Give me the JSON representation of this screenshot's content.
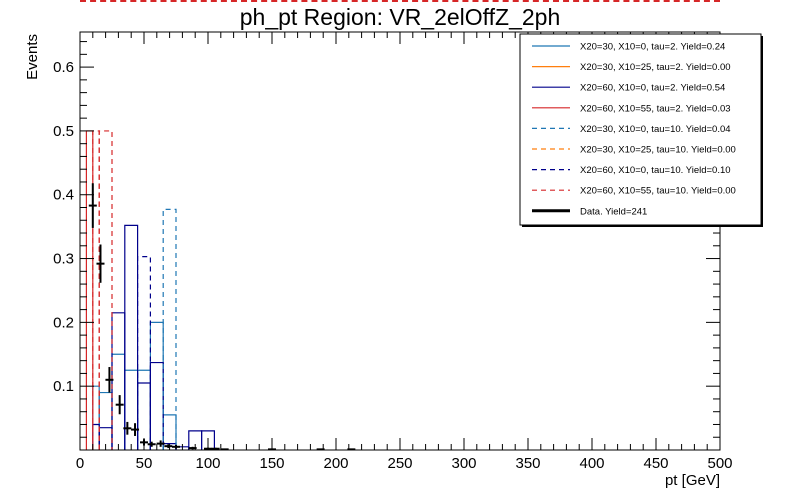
{
  "chart_data": {
    "type": "histogram",
    "title": "ph_pt Region: VR_2elOffZ_2ph",
    "xlabel": "pt [GeV]",
    "ylabel": "Events",
    "xlim": [
      0,
      500
    ],
    "ylim": [
      0,
      0.655
    ],
    "x_ticks": [
      0,
      50,
      100,
      150,
      200,
      250,
      300,
      350,
      400,
      450,
      500
    ],
    "y_ticks": [
      0.1,
      0.2,
      0.3,
      0.4,
      0.5,
      0.6
    ],
    "series": [
      {
        "name": "X20=30, X10=0, tau=2. Yield=0.24",
        "color": "#1f77b4",
        "style": "solid",
        "bins": [
          [
            10,
            15,
            0.1
          ],
          [
            15,
            25,
            0.09
          ],
          [
            25,
            35,
            0.15
          ],
          [
            35,
            45,
            0.125
          ],
          [
            45,
            55,
            0.125
          ],
          [
            55,
            65,
            0.2
          ],
          [
            65,
            75,
            0.055
          ]
        ]
      },
      {
        "name": "X20=30, X10=25, tau=2. Yield=0.00",
        "color": "#ff7f0e",
        "style": "solid",
        "bins": []
      },
      {
        "name": "X20=60, X10=0, tau=2. Yield=0.54",
        "color": "#00008b",
        "style": "solid",
        "bins": [
          [
            10,
            15,
            0.04
          ],
          [
            15,
            25,
            0.035
          ],
          [
            25,
            35,
            0.215
          ],
          [
            35,
            45,
            0.352
          ],
          [
            45,
            55,
            0.105
          ],
          [
            55,
            65,
            0.137
          ],
          [
            65,
            75,
            0.01
          ],
          [
            75,
            85,
            0.005
          ],
          [
            85,
            95,
            0.03
          ],
          [
            95,
            105,
            0.03
          ]
        ]
      },
      {
        "name": "X20=60, X10=55, tau=2. Yield=0.03",
        "color": "#d62728",
        "style": "solid",
        "bins": [
          [
            5,
            10,
            0.5
          ]
        ]
      },
      {
        "name": "X20=30, X10=0, tau=10. Yield=0.04",
        "color": "#1f77b4",
        "style": "dashed",
        "bins": [
          [
            65,
            75,
            0.377
          ]
        ]
      },
      {
        "name": "X20=30, X10=25, tau=10. Yield=0.00",
        "color": "#ff7f0e",
        "style": "dashed",
        "bins": []
      },
      {
        "name": "X20=60, X10=0, tau=10. Yield=0.10",
        "color": "#00008b",
        "style": "dashed",
        "bins": [
          [
            45,
            55,
            0.303
          ]
        ]
      },
      {
        "name": "X20=60, X10=55, tau=10. Yield=0.00",
        "color": "#d62728",
        "style": "dashed",
        "bins": [
          [
            10,
            15,
            0.5
          ],
          [
            15,
            25,
            0.5
          ]
        ]
      }
    ],
    "data_points": {
      "name": "Data. Yield=241",
      "x": [
        10,
        16,
        23,
        31,
        37,
        43,
        50,
        56,
        63,
        69,
        75,
        88,
        100,
        106,
        113,
        150,
        188,
        212
      ],
      "y": [
        0.383,
        0.292,
        0.11,
        0.071,
        0.034,
        0.032,
        0.012,
        0.009,
        0.01,
        0.006,
        0.005,
        0.003,
        0.002,
        0.002,
        0.001,
        0.001,
        0.001,
        0.001
      ],
      "yerr": [
        0.035,
        0.03,
        0.02,
        0.015,
        0.01,
        0.01,
        0.005,
        0.004,
        0.005,
        0.003,
        0.003,
        0.002,
        0.0015,
        0.0015,
        0.001,
        0.001,
        0.001,
        0.001
      ]
    },
    "legend_position": "top-right"
  }
}
